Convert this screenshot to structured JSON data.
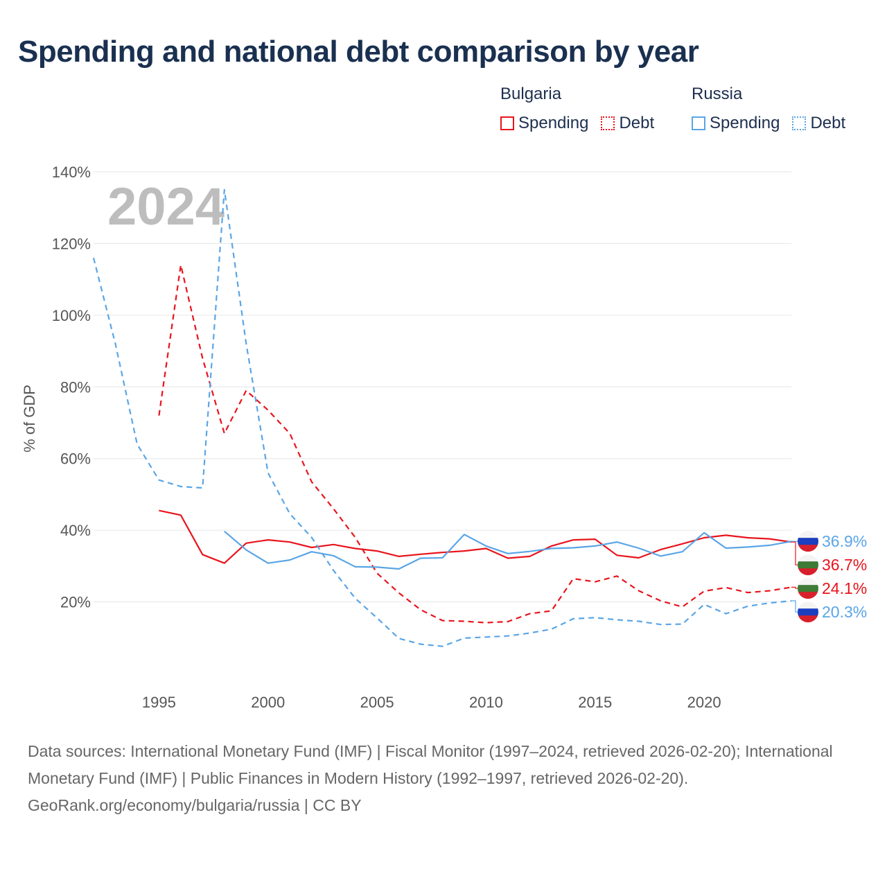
{
  "title": "Spending and national debt comparison by year",
  "legend": {
    "groups": [
      {
        "name": "Bulgaria",
        "color": "#e8141c",
        "items": [
          {
            "label": "Spending",
            "style": "solid"
          },
          {
            "label": "Debt",
            "style": "dotted"
          }
        ]
      },
      {
        "name": "Russia",
        "color": "#5aa5e6",
        "items": [
          {
            "label": "Spending",
            "style": "solid"
          },
          {
            "label": "Debt",
            "style": "dotted"
          }
        ]
      }
    ]
  },
  "chart_data": {
    "type": "line",
    "title": "Spending and national debt comparison by year",
    "year_overlay": "2024",
    "ylabel": "% of GDP",
    "xlabel": "",
    "xlim": [
      1992,
      2024
    ],
    "ylim": [
      0,
      140
    ],
    "x_ticks": [
      1995,
      2000,
      2005,
      2010,
      2015,
      2020
    ],
    "y_ticks": [
      {
        "value": 20,
        "label": "20%"
      },
      {
        "value": 40,
        "label": "40%"
      },
      {
        "value": 60,
        "label": "60%"
      },
      {
        "value": 80,
        "label": "80%"
      },
      {
        "value": 100,
        "label": "100%"
      },
      {
        "value": 120,
        "label": "120%"
      },
      {
        "value": 140,
        "label": "140%"
      }
    ],
    "series": [
      {
        "name": "Bulgaria Spending",
        "country": "Bulgaria",
        "metric": "Spending",
        "color": "#e8141c",
        "dash": "solid",
        "x": [
          1995,
          1996,
          1997,
          1998,
          1999,
          2000,
          2001,
          2002,
          2003,
          2004,
          2005,
          2006,
          2007,
          2008,
          2009,
          2010,
          2011,
          2012,
          2013,
          2014,
          2015,
          2016,
          2017,
          2018,
          2019,
          2020,
          2021,
          2022,
          2023,
          2024
        ],
        "y": [
          45.5,
          44.2,
          33.2,
          30.8,
          36.4,
          37.3,
          36.7,
          35.2,
          36.0,
          34.9,
          34.2,
          32.7,
          33.3,
          33.8,
          34.2,
          34.9,
          32.2,
          32.7,
          35.6,
          37.3,
          37.5,
          33.0,
          32.3,
          34.6,
          36.2,
          37.9,
          38.6,
          37.9,
          37.6,
          36.7
        ],
        "end_label": "36.7%",
        "flag": "bulgaria"
      },
      {
        "name": "Bulgaria Debt",
        "country": "Bulgaria",
        "metric": "Debt",
        "color": "#e8141c",
        "dash": "dashed",
        "x": [
          1995,
          1996,
          1997,
          1998,
          1999,
          2000,
          2001,
          2002,
          2003,
          2004,
          2005,
          2006,
          2007,
          2008,
          2009,
          2010,
          2011,
          2012,
          2013,
          2014,
          2015,
          2016,
          2017,
          2018,
          2019,
          2020,
          2021,
          2022,
          2023,
          2024
        ],
        "y": [
          72.0,
          114.0,
          88.0,
          67.0,
          79.0,
          73.5,
          67.0,
          53.5,
          46.0,
          38.0,
          28.0,
          22.5,
          17.8,
          14.8,
          14.6,
          14.2,
          14.5,
          16.7,
          17.5,
          26.5,
          25.6,
          27.2,
          23.1,
          20.3,
          18.6,
          23.0,
          24.0,
          22.6,
          23.1,
          24.1
        ],
        "end_label": "24.1%",
        "flag": "bulgaria"
      },
      {
        "name": "Russia Spending",
        "country": "Russia",
        "metric": "Spending",
        "color": "#5aa5e6",
        "dash": "solid",
        "x": [
          1998,
          1999,
          2000,
          2001,
          2002,
          2003,
          2004,
          2005,
          2006,
          2007,
          2008,
          2009,
          2010,
          2011,
          2012,
          2013,
          2014,
          2015,
          2016,
          2017,
          2018,
          2019,
          2020,
          2021,
          2022,
          2023,
          2024
        ],
        "y": [
          39.7,
          34.5,
          30.8,
          31.7,
          34.0,
          32.9,
          29.8,
          29.7,
          29.2,
          32.2,
          32.3,
          38.8,
          35.6,
          33.5,
          34.1,
          34.9,
          35.1,
          35.6,
          36.7,
          35.0,
          32.8,
          34.0,
          39.3,
          35.0,
          35.3,
          35.8,
          36.9
        ],
        "end_label": "36.9%",
        "flag": "russia"
      },
      {
        "name": "Russia Debt",
        "country": "Russia",
        "metric": "Debt",
        "color": "#5aa5e6",
        "dash": "dashed",
        "x": [
          1992,
          1993,
          1994,
          1995,
          1996,
          1997,
          1998,
          1999,
          2000,
          2001,
          2002,
          2003,
          2004,
          2005,
          2006,
          2007,
          2008,
          2009,
          2010,
          2011,
          2012,
          2013,
          2014,
          2015,
          2016,
          2017,
          2018,
          2019,
          2020,
          2021,
          2022,
          2023,
          2024
        ],
        "y": [
          116.0,
          92.0,
          64.0,
          54.0,
          52.2,
          51.8,
          135.0,
          92.0,
          56.0,
          44.6,
          38.0,
          28.8,
          21.0,
          15.5,
          9.8,
          8.2,
          7.6,
          9.9,
          10.2,
          10.5,
          11.3,
          12.4,
          15.3,
          15.6,
          15.0,
          14.6,
          13.7,
          13.8,
          19.3,
          16.7,
          18.8,
          19.7,
          20.3
        ],
        "end_label": "20.3%",
        "flag": "russia"
      }
    ]
  },
  "footer": {
    "sources": "Data sources: International Monetary Fund (IMF) | Fiscal Monitor (1997–2024, retrieved 2026-02-20); International Monetary Fund (IMF) | Public Finances in Modern History (1992–1997, retrieved 2026-02-20).",
    "credit": "GeoRank.org/economy/bulgaria/russia | CC BY"
  }
}
